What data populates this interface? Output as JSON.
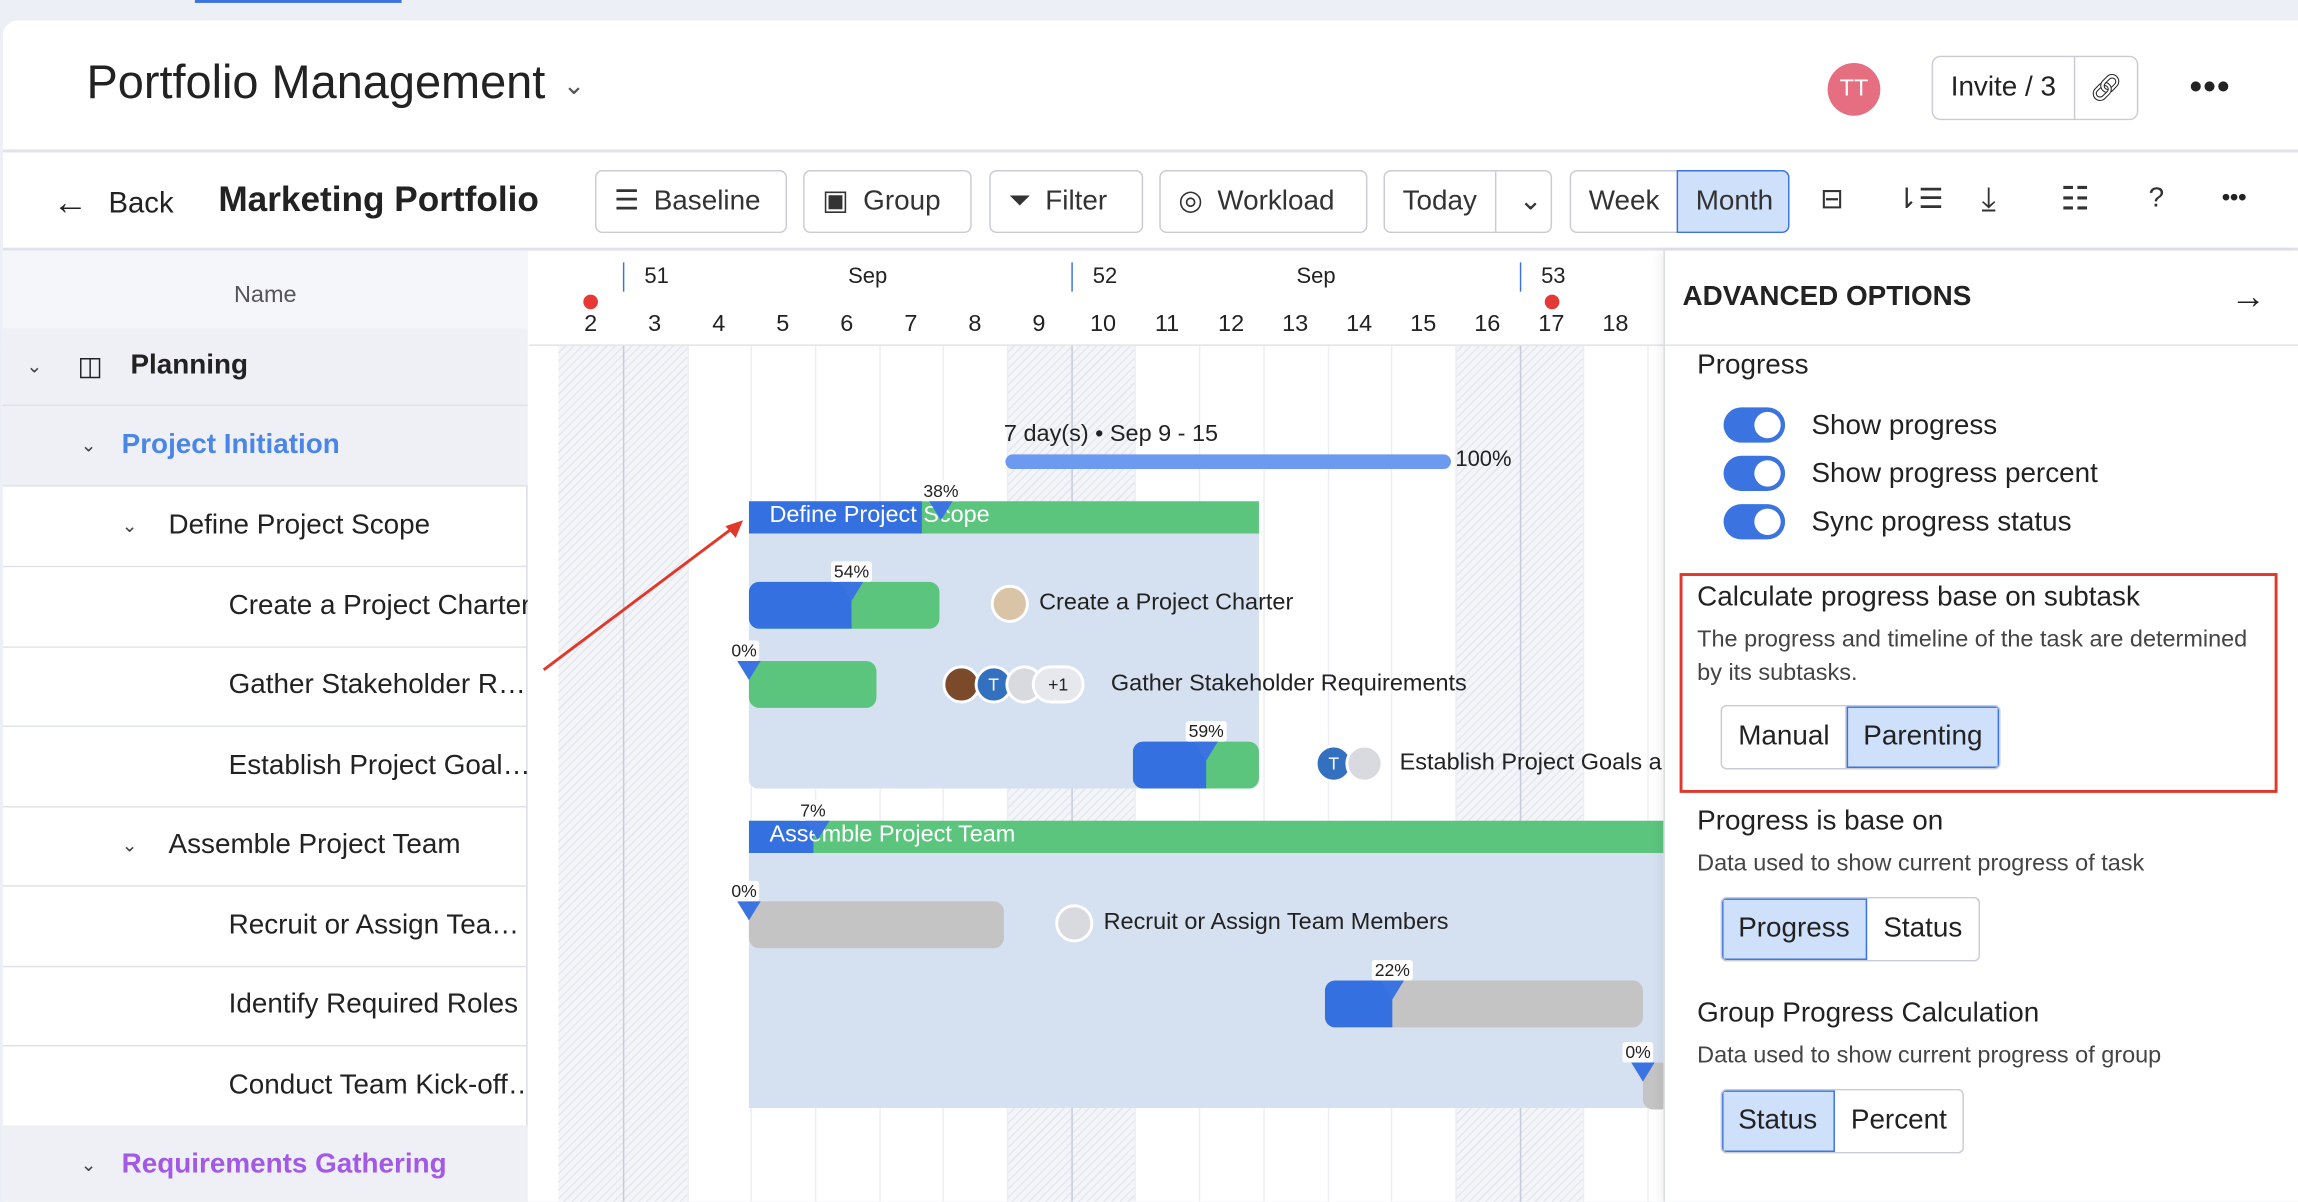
{
  "header": {
    "title": "Portfolio Management",
    "user_initials": "TT",
    "invite_label": "Invite / 3"
  },
  "toolbar": {
    "back": "Back",
    "portfolio": "Marketing Portfolio",
    "baseline": "Baseline",
    "group": "Group",
    "filter": "Filter",
    "workload": "Workload",
    "today": "Today",
    "week": "Week",
    "month": "Month",
    "help": "?"
  },
  "timeline": {
    "name_header": "Name",
    "weeks": [
      {
        "label": "51",
        "month": "Sep"
      },
      {
        "label": "52",
        "month": "Sep"
      },
      {
        "label": "53"
      }
    ],
    "days": [
      "2",
      "3",
      "4",
      "5",
      "6",
      "7",
      "8",
      "9",
      "10",
      "11",
      "12",
      "13",
      "14",
      "15",
      "16",
      "17",
      "18"
    ]
  },
  "tree": [
    {
      "label": "Planning",
      "level": 0
    },
    {
      "label": "Project Initiation",
      "level": 1
    },
    {
      "label": "Define Project Scope",
      "level": 2
    },
    {
      "label": "Create a Project Charter",
      "level": 3
    },
    {
      "label": "Gather Stakeholder R…",
      "level": 3
    },
    {
      "label": "Establish Project Goal…",
      "level": 3
    },
    {
      "label": "Assemble Project Team",
      "level": 2
    },
    {
      "label": "Recruit or Assign Tea…",
      "level": 3
    },
    {
      "label": "Identify Required Roles",
      "level": 3
    },
    {
      "label": "Conduct Team Kick-off…",
      "level": 3
    },
    {
      "label": "Requirements Gathering",
      "level": 1
    }
  ],
  "gantt": {
    "initiation": {
      "summary": "7 day(s) • Sep 9 - 15",
      "progress": "100%"
    },
    "define_scope": {
      "label": "Define Project Scope",
      "progress": "38%"
    },
    "charter": {
      "label": "Create a Project Charter",
      "progress": "54%"
    },
    "gather": {
      "label": "Gather Stakeholder Requirements",
      "progress": "0%",
      "extra": "+1"
    },
    "establish": {
      "label": "Establish Project Goals a",
      "progress": "59%"
    },
    "assemble": {
      "label": "Assemble Project Team",
      "progress": "7%"
    },
    "recruit": {
      "label": "Recruit or Assign Team Members",
      "progress": "0%"
    },
    "identify": {
      "progress": "22%"
    },
    "conduct": {
      "progress": "0%"
    },
    "avatar_letter": "T"
  },
  "panel": {
    "title": "ADVANCED OPTIONS",
    "progress_heading": "Progress",
    "toggles": [
      "Show progress",
      "Show progress percent",
      "Sync progress status"
    ],
    "calc_heading": "Calculate progress base on subtask",
    "calc_desc1": "The progress and timeline of the task are determined",
    "calc_desc2": "by its subtasks.",
    "calc_options": [
      "Manual",
      "Parenting"
    ],
    "base_heading": "Progress is base on",
    "base_desc": "Data used to show current progress of task",
    "base_options": [
      "Progress",
      "Status"
    ],
    "group_heading": "Group Progress Calculation",
    "group_desc": "Data used to show current progress of group",
    "group_options": [
      "Status",
      "Percent"
    ]
  },
  "colors": {
    "accent": "#3b74e0",
    "progress_green": "#5bc57d",
    "group_bg": "#d5e0f0",
    "highlight_border": "#e0392b",
    "parent_purple": "#a259e6",
    "parent_blue": "#4a86e8"
  }
}
